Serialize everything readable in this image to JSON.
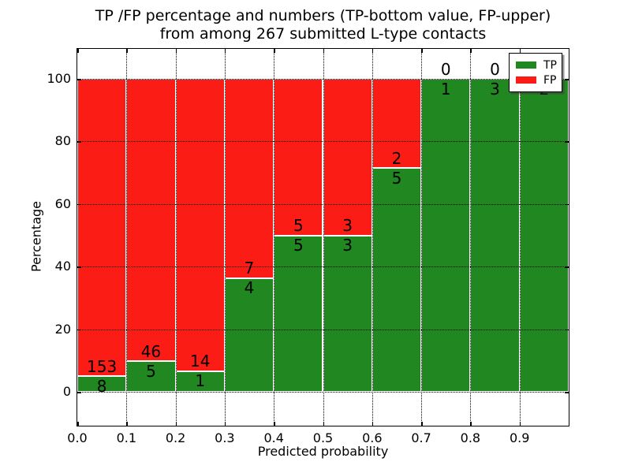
{
  "title": {
    "line1": "TP /FP percentage and numbers (TP-bottom value, FP-upper)",
    "line2": "from among 267 submitted L-type contacts"
  },
  "axes": {
    "xlabel": "Predicted probability",
    "ylabel": "Percentage",
    "x_ticks": [
      "0.0",
      "0.1",
      "0.2",
      "0.3",
      "0.4",
      "0.5",
      "0.6",
      "0.7",
      "0.8",
      "0.9"
    ],
    "y_ticks": [
      "0",
      "20",
      "40",
      "60",
      "80",
      "100"
    ]
  },
  "legend": {
    "position": "upper-right",
    "items": [
      {
        "label": "TP",
        "color": "#218721"
      },
      {
        "label": "FP",
        "color": "#fb1c16"
      }
    ]
  },
  "chart_data": {
    "type": "bar",
    "stacked": true,
    "normalized_to_percent": true,
    "title": "TP /FP percentage and numbers (TP-bottom value, FP-upper) from among 267 submitted L-type contacts",
    "xlabel": "Predicted probability",
    "ylabel": "Percentage",
    "bins": [
      0.0,
      0.1,
      0.2,
      0.3,
      0.4,
      0.5,
      0.6,
      0.7,
      0.8,
      0.9,
      1.0
    ],
    "categories": [
      "0.0-0.1",
      "0.1-0.2",
      "0.2-0.3",
      "0.3-0.4",
      "0.4-0.5",
      "0.5-0.6",
      "0.6-0.7",
      "0.7-0.8",
      "0.8-0.9",
      "0.9-1.0"
    ],
    "series": [
      {
        "name": "TP",
        "color": "#218721",
        "values": [
          8,
          5,
          1,
          4,
          5,
          3,
          5,
          1,
          3,
          2
        ]
      },
      {
        "name": "FP",
        "color": "#fb1c16",
        "values": [
          153,
          46,
          14,
          7,
          5,
          3,
          2,
          0,
          0,
          0
        ]
      }
    ],
    "tp_percent": [
      4.97,
      9.8,
      6.67,
      36.36,
      50.0,
      50.0,
      71.43,
      100.0,
      100.0,
      100.0
    ],
    "total_contacts": 267,
    "xlim": [
      0.0,
      1.0
    ],
    "ylim": [
      -11,
      110
    ],
    "grid": "dotted",
    "bar_edge_color": "#ffffff",
    "bar_labels": "FP count above segment boundary, TP count below"
  }
}
